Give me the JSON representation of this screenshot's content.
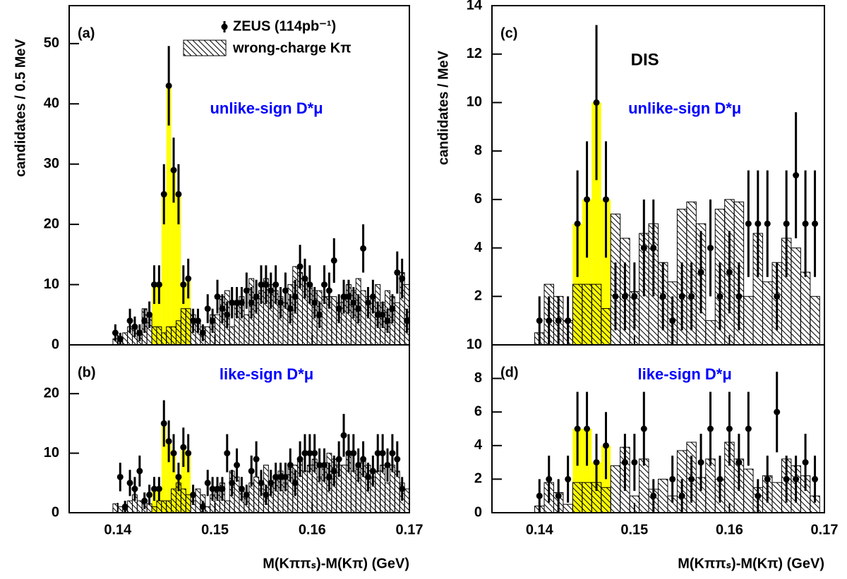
{
  "chart_data": [
    {
      "type": "histogram",
      "label": "(a)",
      "annotation": "unlike-sign D*μ",
      "ylabel": "candidates / 0.5 MeV",
      "xlim": [
        0.135,
        0.17
      ],
      "ylim": [
        0,
        56.3
      ],
      "xticks": [
        0.14,
        0.15,
        0.16,
        0.17
      ],
      "xtick_labels": false,
      "yticks": [
        0,
        10,
        20,
        30,
        40,
        50
      ],
      "points": {
        "name": "ZEUS (114pb⁻¹)",
        "color": "#000000",
        "x": [
          0.13975,
          0.14025,
          0.14075,
          0.14125,
          0.14175,
          0.14225,
          0.14275,
          0.14325,
          0.14375,
          0.14425,
          0.14475,
          0.14525,
          0.14575,
          0.14625,
          0.14675,
          0.14725,
          0.14775,
          0.14825,
          0.14875,
          0.14925,
          0.14975,
          0.15025,
          0.15075,
          0.15125,
          0.15175,
          0.15225,
          0.15275,
          0.15325,
          0.15375,
          0.15425,
          0.15475,
          0.15525,
          0.15575,
          0.15625,
          0.15675,
          0.15725,
          0.15775,
          0.15825,
          0.15875,
          0.15925,
          0.15975,
          0.16025,
          0.16075,
          0.16125,
          0.16175,
          0.16225,
          0.16275,
          0.16325,
          0.16375,
          0.16425,
          0.16475,
          0.16525,
          0.16575,
          0.16625,
          0.16675,
          0.16725,
          0.16775,
          0.16825,
          0.16875,
          0.16925,
          0.16975
        ],
        "values": [
          2,
          1,
          null,
          4,
          3,
          2,
          4,
          5,
          10,
          10,
          25,
          43,
          29,
          25,
          10,
          11,
          4,
          4,
          2,
          6,
          4,
          8,
          6,
          5,
          7,
          7,
          7,
          9,
          7,
          8,
          10,
          10,
          9,
          10,
          7,
          9,
          6,
          8,
          13,
          11,
          10,
          7,
          5,
          10,
          9,
          14,
          6,
          8,
          8,
          7,
          6,
          16,
          7,
          8,
          5,
          5,
          4,
          6,
          12,
          11,
          4
        ],
        "errors": [
          1.4,
          1,
          null,
          2,
          1.7,
          1.4,
          2,
          2.2,
          3.2,
          3.2,
          5,
          6.6,
          5.4,
          5,
          3.2,
          3.3,
          2,
          2,
          1.4,
          2.4,
          2,
          2.8,
          2.4,
          2.2,
          2.6,
          2.6,
          2.6,
          3,
          2.6,
          2.8,
          3.2,
          3.2,
          3,
          3.2,
          2.6,
          3,
          2.4,
          2.8,
          3.6,
          3.3,
          3.2,
          2.6,
          2.2,
          3.2,
          3,
          3.7,
          2.4,
          2.8,
          2.8,
          2.6,
          2.4,
          4,
          2.6,
          2.8,
          2.2,
          2.2,
          2,
          2.4,
          3.5,
          3.3,
          2
        ]
      },
      "background": {
        "name": "wrong-charge Kπ",
        "color": "#000000",
        "bins": [
          0.1395,
          0.14,
          0.1405,
          0.141,
          0.1415,
          0.142,
          0.1425,
          0.143,
          0.1435,
          0.144,
          0.1445,
          0.145,
          0.1455,
          0.146,
          0.1465,
          0.147,
          0.1475,
          0.148,
          0.1485,
          0.149,
          0.1495,
          0.15,
          0.1505,
          0.151,
          0.1515,
          0.152,
          0.1525,
          0.153,
          0.1535,
          0.154,
          0.1545,
          0.155,
          0.1555,
          0.156,
          0.1565,
          0.157,
          0.1575,
          0.158,
          0.1585,
          0.159,
          0.1595,
          0.16,
          0.1605,
          0.161,
          0.1615,
          0.162,
          0.1625,
          0.163,
          0.1635,
          0.164,
          0.1645,
          0.165,
          0.1655,
          0.166,
          0.1665,
          0.167,
          0.1675,
          0.168,
          0.1685,
          0.169,
          0.1695,
          0.17
        ],
        "values": [
          1,
          1,
          2,
          3,
          3,
          2,
          6,
          5,
          3,
          3,
          2,
          3,
          3,
          4,
          6,
          6,
          5,
          4,
          3,
          3,
          5,
          5,
          8,
          9,
          3,
          7,
          8,
          5,
          11,
          8,
          9,
          11,
          10,
          9,
          8,
          7,
          10,
          13,
          12,
          11,
          10,
          9,
          9,
          8,
          8,
          8,
          7,
          8,
          10,
          9,
          11,
          9,
          8,
          8,
          10,
          7,
          9,
          8,
          7,
          12,
          10
        ]
      },
      "signal": {
        "color": "#ffff00",
        "bins": [
          0.1435,
          0.144,
          0.1445,
          0.145,
          0.1455,
          0.146,
          0.1465,
          0.147,
          0.1475
        ],
        "values": [
          10,
          10,
          25,
          43,
          29,
          25,
          10,
          11
        ]
      }
    },
    {
      "type": "histogram",
      "label": "(b)",
      "annotation": "like-sign D*μ",
      "xlabel": "M(Kππₛ)-M(Kπ) (GeV)",
      "xlim": [
        0.135,
        0.17
      ],
      "ylim": [
        0,
        28.2
      ],
      "xticks": [
        0.14,
        0.15,
        0.16,
        0.17
      ],
      "xtick_labels": true,
      "yticks": [
        0,
        10,
        20
      ],
      "points": {
        "color": "#000000",
        "x": [
          0.13975,
          0.14025,
          0.14075,
          0.14125,
          0.14175,
          0.14225,
          0.14275,
          0.14325,
          0.14375,
          0.14425,
          0.14475,
          0.14525,
          0.14575,
          0.14625,
          0.14675,
          0.14725,
          0.14775,
          0.14825,
          0.14875,
          0.14925,
          0.14975,
          0.15025,
          0.15075,
          0.15125,
          0.15175,
          0.15225,
          0.15275,
          0.15325,
          0.15375,
          0.15425,
          0.15475,
          0.15525,
          0.15575,
          0.15625,
          0.15675,
          0.15725,
          0.15775,
          0.15825,
          0.15875,
          0.15925,
          0.15975,
          0.16025,
          0.16075,
          0.16125,
          0.16175,
          0.16225,
          0.16275,
          0.16325,
          0.16375,
          0.16425,
          0.16475,
          0.16525,
          0.16575,
          0.16625,
          0.16675,
          0.16725,
          0.16775,
          0.16825,
          0.16875,
          0.16925,
          0.16975
        ],
        "values": [
          null,
          6,
          1,
          5,
          4,
          7,
          2,
          3,
          4,
          4,
          15,
          12,
          10,
          6,
          11,
          10,
          3,
          null,
          1,
          5,
          4,
          4,
          4,
          10,
          5,
          8,
          4,
          3,
          7,
          9,
          5,
          3,
          5,
          6,
          6,
          6,
          8,
          5,
          9,
          10,
          10,
          10,
          8,
          8,
          6,
          7,
          9,
          13,
          10,
          10,
          8,
          9,
          6,
          7,
          10,
          10,
          8,
          10,
          9,
          4,
          null
        ],
        "errors": [
          null,
          2.4,
          1,
          2.2,
          2,
          2.6,
          1.4,
          1.7,
          2,
          2,
          3.9,
          3.5,
          3.2,
          2.4,
          3.3,
          3.2,
          1.7,
          null,
          1,
          2.2,
          2,
          2,
          2,
          3.2,
          2.2,
          2.8,
          2,
          1.7,
          2.6,
          3,
          2.2,
          1.7,
          2.2,
          2.4,
          2.4,
          2.4,
          2.8,
          2.2,
          3,
          3.2,
          3.2,
          3.2,
          2.8,
          2.8,
          2.4,
          2.6,
          3,
          3.6,
          3.2,
          3.2,
          2.8,
          3,
          2.4,
          2.6,
          3.2,
          3.2,
          2.8,
          3.2,
          3,
          2,
          null
        ]
      },
      "background": {
        "color": "#000000",
        "bins": [
          0.1395,
          0.14,
          0.1405,
          0.141,
          0.1415,
          0.142,
          0.1425,
          0.143,
          0.1435,
          0.144,
          0.1445,
          0.145,
          0.1455,
          0.146,
          0.1465,
          0.147,
          0.1475,
          0.148,
          0.1485,
          0.149,
          0.1495,
          0.15,
          0.1505,
          0.151,
          0.1515,
          0.152,
          0.1525,
          0.153,
          0.1535,
          0.154,
          0.1545,
          0.155,
          0.1555,
          0.156,
          0.1565,
          0.157,
          0.1575,
          0.158,
          0.1585,
          0.159,
          0.1595,
          0.16,
          0.1605,
          0.161,
          0.1615,
          0.162,
          0.1625,
          0.163,
          0.1635,
          0.164,
          0.1645,
          0.165,
          0.1655,
          0.166,
          0.1665,
          0.167,
          0.1675,
          0.168,
          0.1685,
          0.169,
          0.1695,
          0.17
        ],
        "values": [
          1.5,
          1,
          0.5,
          2,
          3,
          2,
          2,
          1.5,
          1,
          2,
          2,
          2,
          4,
          5,
          4,
          3,
          2,
          4,
          3,
          1,
          3,
          4,
          5,
          2,
          7,
          6,
          4,
          3,
          5,
          6,
          4,
          8,
          5,
          6,
          7,
          5,
          8,
          8,
          9,
          7,
          8,
          9,
          6,
          8,
          10,
          9,
          8,
          8,
          10,
          7,
          8,
          9,
          8,
          6,
          7,
          8,
          5,
          8,
          7,
          5,
          4
        ]
      },
      "signal": {
        "color": "#ffff00",
        "bins": [
          0.1435,
          0.144,
          0.1445,
          0.145,
          0.1455,
          0.146,
          0.1465,
          0.147,
          0.1475
        ],
        "values": [
          4,
          4,
          15,
          12,
          10,
          6,
          11,
          10
        ]
      }
    },
    {
      "type": "histogram",
      "label": "(c)",
      "annotation": "unlike-sign D*μ",
      "tag": "DIS",
      "ylabel": "candidates / MeV",
      "xlim": [
        0.135,
        0.17
      ],
      "ylim": [
        0,
        14
      ],
      "xticks": [
        0.14,
        0.15,
        0.16,
        0.17
      ],
      "xtick_labels": false,
      "yticks": [
        2,
        4,
        6,
        8,
        10,
        12,
        14
      ],
      "points": {
        "color": "#000000",
        "x": [
          0.14,
          0.141,
          0.142,
          0.143,
          0.144,
          0.145,
          0.146,
          0.147,
          0.148,
          0.149,
          0.15,
          0.151,
          0.152,
          0.153,
          0.154,
          0.155,
          0.156,
          0.157,
          0.158,
          0.159,
          0.16,
          0.161,
          0.162,
          0.163,
          0.164,
          0.165,
          0.166,
          0.167,
          0.168,
          0.169
        ],
        "values": [
          1,
          1,
          1,
          1,
          5,
          6,
          10,
          6,
          2,
          2,
          2,
          4,
          4,
          2,
          1,
          2,
          2,
          3,
          4,
          2,
          3,
          2,
          5,
          5,
          5,
          2,
          5,
          7,
          5,
          5
        ],
        "errors": [
          1,
          1,
          1,
          1,
          2.2,
          2.4,
          3.2,
          2.4,
          1.4,
          1.4,
          1.4,
          2,
          2,
          1.4,
          1,
          1.4,
          1.4,
          1.7,
          2,
          1.4,
          1.7,
          1.4,
          2.2,
          2.2,
          2.2,
          1.4,
          2.2,
          2.6,
          2.2,
          2.2
        ]
      },
      "background": {
        "color": "#000000",
        "bins": [
          0.1395,
          0.1405,
          0.1415,
          0.1425,
          0.1435,
          0.1445,
          0.1455,
          0.1465,
          0.1475,
          0.1485,
          0.1495,
          0.1505,
          0.1515,
          0.1525,
          0.1535,
          0.1545,
          0.1555,
          0.1565,
          0.1575,
          0.1585,
          0.1595,
          0.1605,
          0.1615,
          0.1625,
          0.1635,
          0.1645,
          0.1655,
          0.1665,
          0.1675,
          0.1685,
          0.1695
        ],
        "values": [
          0.5,
          2.5,
          2,
          1,
          2.5,
          2.5,
          2.5,
          1.5,
          5.4,
          4.4,
          2.2,
          4.6,
          5,
          3.4,
          2.6,
          5.6,
          5.9,
          5,
          1,
          5.6,
          6,
          5.9,
          2,
          4.6,
          2.6,
          3.4,
          4.4,
          4,
          3,
          2
        ]
      },
      "signal": {
        "color": "#ffff00",
        "bins": [
          0.1435,
          0.1445,
          0.1455,
          0.1465,
          0.1475
        ],
        "values": [
          5,
          6,
          10,
          6
        ]
      }
    },
    {
      "type": "histogram",
      "label": "(d)",
      "annotation": "like-sign D*μ",
      "xlabel": "M(Kππₛ)-M(Kπ) (GeV)",
      "xlim": [
        0.135,
        0.17
      ],
      "ylim": [
        0,
        10
      ],
      "xticks": [
        0.14,
        0.15,
        0.16,
        0.17
      ],
      "xtick_labels": true,
      "yticks": [
        0,
        2,
        4,
        6,
        8,
        10
      ],
      "points": {
        "color": "#000000",
        "x": [
          0.14,
          0.141,
          0.142,
          0.143,
          0.144,
          0.145,
          0.146,
          0.147,
          0.148,
          0.149,
          0.15,
          0.151,
          0.152,
          0.153,
          0.154,
          0.155,
          0.156,
          0.157,
          0.158,
          0.159,
          0.16,
          0.161,
          0.162,
          0.163,
          0.164,
          0.165,
          0.166,
          0.167,
          0.168,
          0.169
        ],
        "values": [
          1,
          2,
          1,
          2,
          5,
          5,
          3,
          4,
          null,
          3,
          3,
          5,
          1,
          null,
          2,
          1,
          2,
          3,
          5,
          2,
          5,
          3,
          5,
          1,
          2,
          6,
          2,
          2,
          3,
          2
        ],
        "errors": [
          1,
          1.4,
          1,
          1.4,
          2.2,
          2.2,
          1.7,
          2,
          null,
          1.7,
          1.7,
          2.2,
          1,
          null,
          1.4,
          1,
          1.4,
          1.7,
          2.2,
          1.4,
          2.2,
          1.7,
          2.2,
          1,
          1.4,
          2.4,
          1.4,
          1.4,
          1.7,
          1.4
        ]
      },
      "background": {
        "color": "#000000",
        "bins": [
          0.1395,
          0.1405,
          0.1415,
          0.1425,
          0.1435,
          0.1445,
          0.1455,
          0.1465,
          0.1475,
          0.1485,
          0.1495,
          0.1505,
          0.1515,
          0.1525,
          0.1535,
          0.1545,
          0.1555,
          0.1565,
          0.1575,
          0.1585,
          0.1595,
          0.1605,
          0.1615,
          0.1625,
          0.1635,
          0.1645,
          0.1655,
          0.1665,
          0.1675,
          0.1685,
          0.1695
        ],
        "values": [
          0.4,
          1.8,
          1.2,
          0.5,
          1.8,
          1.8,
          1.8,
          1.5,
          2.8,
          3.9,
          1,
          3.2,
          1.4,
          2,
          1,
          3.7,
          4.2,
          2.1,
          3.2,
          2,
          4.2,
          3.2,
          2.6,
          1.5,
          2.2,
          1.8,
          3.2,
          2.8,
          2.2,
          1
        ]
      },
      "signal": {
        "color": "#ffff00",
        "bins": [
          0.1435,
          0.1445,
          0.1455,
          0.1465,
          0.1475
        ],
        "values": [
          5,
          5,
          3,
          4
        ]
      }
    }
  ]
}
